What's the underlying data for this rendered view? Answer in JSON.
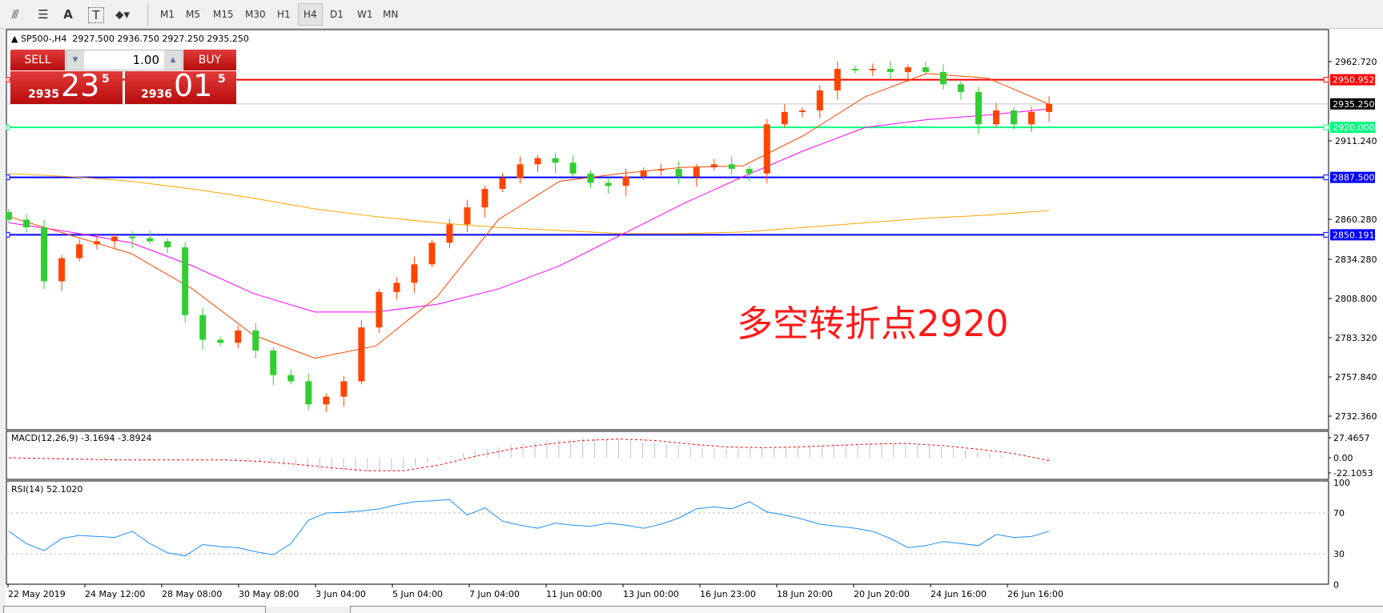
{
  "toolbar": {
    "icons": [
      "fibonacci-expansion-icon",
      "fibonacci-fan-icon",
      "text-icon",
      "text-label-icon",
      "arrows-icon"
    ],
    "icon_glyphs": {
      "text": "A",
      "label": "T"
    },
    "timeframes": [
      "M1",
      "M5",
      "M15",
      "M30",
      "H1",
      "H4",
      "D1",
      "W1",
      "MN"
    ],
    "active_timeframe": "H4"
  },
  "header": {
    "symbol": "SP500-,H4",
    "open": "2927.500",
    "high": "2936.750",
    "low": "2927.250",
    "close": "2935.250"
  },
  "trade_panel": {
    "sell_label": "SELL",
    "buy_label": "BUY",
    "volume": "1.00",
    "sell_big": "2935",
    "sell_mid": "23",
    "sell_sup": "5",
    "buy_big": "2936",
    "buy_mid": "01",
    "buy_sup": "5"
  },
  "annotation": "多空转折点2920",
  "colors": {
    "up": "#ff4500",
    "down": "#32cd32",
    "ma_fast": "#ff4500",
    "ma_mid": "#ff00ff",
    "ma_slow": "#ffa500",
    "line_red": "#ff0000",
    "line_green": "#00ff7f",
    "line_blue": "#0000ff",
    "rsi": "#1e90ff",
    "macd_signal": "#ff0000",
    "macd_hist": "#c0c0c0"
  },
  "chart_data": {
    "type": "candlestick",
    "price_ticks": [
      "2962.720",
      "2911.240",
      "2860.280",
      "2834.280",
      "2808.800",
      "2783.320",
      "2757.840",
      "2732.360"
    ],
    "price_range": [
      2708,
      2985
    ],
    "first_open": 2865,
    "closes": [
      2860,
      2855,
      2820,
      2835,
      2844,
      2846,
      2849,
      2848,
      2846,
      2842,
      2798,
      2782,
      2780,
      2788,
      2775,
      2759,
      2755,
      2740,
      2745,
      2755,
      2790,
      2813,
      2819,
      2831,
      2845,
      2857,
      2868,
      2880,
      2887,
      2896,
      2900,
      2897,
      2890,
      2884,
      2882,
      2888,
      2892,
      2893,
      2888,
      2894,
      2896,
      2893,
      2890,
      2922,
      2930,
      2931,
      2944,
      2958,
      2957,
      2958,
      2956,
      2959,
      2956,
      2948,
      2943,
      2922,
      2931,
      2922,
      2930,
      2935.25
    ],
    "ma_fast": [
      2862,
      2850,
      2838,
      2815,
      2785,
      2770,
      2778,
      2810,
      2860,
      2885,
      2890,
      2894,
      2895,
      2915,
      2940,
      2955,
      2952,
      2935
    ],
    "ma_mid": [
      2858,
      2852,
      2845,
      2830,
      2812,
      2800,
      2800,
      2805,
      2815,
      2830,
      2850,
      2870,
      2888,
      2905,
      2920,
      2925,
      2928,
      2932
    ],
    "ma_slow": [
      2890,
      2888,
      2885,
      2880,
      2874,
      2867,
      2862,
      2858,
      2855,
      2853,
      2851,
      2851,
      2852,
      2855,
      2858,
      2861,
      2863,
      2866
    ],
    "horizontal_lines": [
      {
        "price": "2950.952",
        "color": "#ff0000"
      },
      {
        "price": "2935.250",
        "color": "#000000",
        "kind": "bid"
      },
      {
        "price": "2920.000",
        "color": "#00ff7f"
      },
      {
        "price": "2887.500",
        "color": "#0000ff"
      },
      {
        "price": "2850.191",
        "color": "#0000ff"
      }
    ],
    "dates": [
      "22 May 2019",
      "24 May 12:00",
      "28 May 08:00",
      "30 May 08:00",
      "3 Jun 04:00",
      "5 Jun 04:00",
      "7 Jun 04:00",
      "11 Jun 00:00",
      "13 Jun 00:00",
      "16 Jun 23:00",
      "18 Jun 20:00",
      "20 Jun 20:00",
      "24 Jun 16:00",
      "26 Jun 16:00"
    ],
    "macd": {
      "label": "MACD(12,26,9) -3.1694 -3.8924",
      "ticks": [
        "27.4657",
        "0.00",
        "-22.1053"
      ],
      "hist": [
        0,
        -1,
        -3,
        -4,
        -3,
        -2,
        -3,
        -6,
        -12,
        -18,
        -20,
        -15,
        -2,
        10,
        18,
        24,
        27,
        25,
        20,
        15,
        12,
        13,
        16,
        19,
        21,
        20,
        15,
        8,
        2,
        -3.17
      ],
      "signal": [
        0,
        -1,
        -2,
        -3,
        -3,
        -3,
        -3,
        -5,
        -9,
        -14,
        -18,
        -18,
        -10,
        2,
        12,
        19,
        24,
        26,
        24,
        19,
        15,
        14,
        15,
        17,
        19,
        20,
        17,
        12,
        6,
        -3.89
      ]
    },
    "rsi": {
      "label": "RSI(14) 52.1020",
      "ticks": [
        "100",
        "70",
        "30",
        "0"
      ],
      "values": [
        52,
        40,
        33,
        45,
        48,
        47,
        46,
        52,
        40,
        31,
        28,
        39,
        37,
        36,
        32,
        29,
        40,
        63,
        70,
        70.6,
        72,
        74,
        78,
        81,
        82,
        83,
        68,
        75,
        62,
        58,
        55,
        60,
        58,
        57,
        60,
        58,
        55,
        59,
        65,
        74,
        76,
        74,
        81,
        71,
        68,
        64,
        59,
        57,
        55,
        52,
        45,
        36,
        38,
        42,
        40,
        38,
        49,
        46,
        47,
        52.1
      ]
    }
  }
}
